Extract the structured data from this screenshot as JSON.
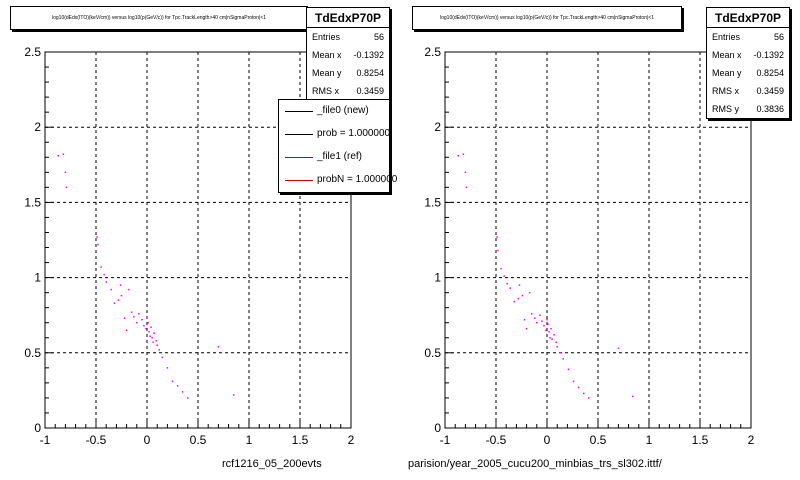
{
  "chart_data": [
    {
      "type": "scatter",
      "title": "log10(dEdx(ITO)(keV/cm)) versus log10(p(GeV/c)) for Tpc.TrackLength>40 cm|nSigmaProton|<1",
      "xlim": [
        -1,
        2
      ],
      "ylim": [
        0,
        2.5
      ],
      "x_ticks": [
        "-1",
        "-0.5",
        "0",
        "0.5",
        "1",
        "1.5",
        "2"
      ],
      "y_ticks": [
        "0",
        "0.5",
        "1",
        "1.5",
        "2",
        "2.5"
      ],
      "grid": true,
      "stats": {
        "name": "TdEdxP70P",
        "rows": [
          {
            "label": "Entries",
            "value": "56"
          },
          {
            "label": "Mean x",
            "value": "-0.1392"
          },
          {
            "label": "Mean y",
            "value": "0.8254"
          },
          {
            "label": "RMS x",
            "value": "0.3459"
          }
        ]
      },
      "legend": {
        "placement": "top-right",
        "entries": [
          {
            "label": "_file0 (new)",
            "color": "#000000"
          },
          {
            "label": "prob = 1.000000",
            "color": "#000000"
          },
          {
            "label": "_file1 (ref)",
            "color": "#cc0000"
          },
          {
            "label": "probN = 1.000000",
            "color": "#cc0000"
          }
        ]
      },
      "footer": "rcf1216_05_200evts",
      "marker_color": "#ff00ff",
      "points": [
        {
          "x": -0.87,
          "y": 1.81
        },
        {
          "x": -0.82,
          "y": 1.82
        },
        {
          "x": -0.8,
          "y": 1.7
        },
        {
          "x": -0.79,
          "y": 1.6
        },
        {
          "x": -0.49,
          "y": 1.27
        },
        {
          "x": -0.48,
          "y": 1.22
        },
        {
          "x": -0.45,
          "y": 1.07
        },
        {
          "x": -0.42,
          "y": 1.02
        },
        {
          "x": -0.4,
          "y": 0.97
        },
        {
          "x": -0.35,
          "y": 0.92
        },
        {
          "x": -0.32,
          "y": 0.83
        },
        {
          "x": -0.28,
          "y": 0.85
        },
        {
          "x": -0.26,
          "y": 0.95
        },
        {
          "x": -0.25,
          "y": 0.88
        },
        {
          "x": -0.22,
          "y": 0.73
        },
        {
          "x": -0.2,
          "y": 0.65
        },
        {
          "x": -0.18,
          "y": 0.92
        },
        {
          "x": -0.15,
          "y": 0.77
        },
        {
          "x": -0.13,
          "y": 0.74
        },
        {
          "x": -0.1,
          "y": 0.7
        },
        {
          "x": -0.08,
          "y": 0.76
        },
        {
          "x": -0.05,
          "y": 0.72
        },
        {
          "x": -0.03,
          "y": 0.68
        },
        {
          "x": -0.01,
          "y": 0.66
        },
        {
          "x": 0.0,
          "y": 0.73
        },
        {
          "x": 0.01,
          "y": 0.7
        },
        {
          "x": 0.02,
          "y": 0.64
        },
        {
          "x": 0.03,
          "y": 0.61
        },
        {
          "x": 0.04,
          "y": 0.67
        },
        {
          "x": 0.05,
          "y": 0.6
        },
        {
          "x": 0.06,
          "y": 0.57
        },
        {
          "x": 0.07,
          "y": 0.63
        },
        {
          "x": 0.09,
          "y": 0.58
        },
        {
          "x": 0.1,
          "y": 0.55
        },
        {
          "x": 0.12,
          "y": 0.52
        },
        {
          "x": 0.15,
          "y": 0.47
        },
        {
          "x": 0.2,
          "y": 0.4
        },
        {
          "x": 0.25,
          "y": 0.31
        },
        {
          "x": 0.3,
          "y": 0.28
        },
        {
          "x": 0.35,
          "y": 0.24
        },
        {
          "x": 0.4,
          "y": 0.2
        },
        {
          "x": 0.7,
          "y": 0.54
        },
        {
          "x": 0.85,
          "y": 0.22
        }
      ]
    },
    {
      "type": "scatter",
      "title": "log10(dEdx(ITO)(keV/cm)) versus log10(p(GeV/c)) for Tpc.TrackLength>40 cm|nSigmaProton|<1",
      "xlim": [
        -1,
        2
      ],
      "ylim": [
        0,
        2.5
      ],
      "x_ticks": [
        "-1",
        "-0.5",
        "0",
        "0.5",
        "1",
        "1.5",
        "2"
      ],
      "y_ticks": [
        "0",
        "0.5",
        "1",
        "1.5",
        "2",
        "2.5"
      ],
      "grid": true,
      "stats": {
        "name": "TdEdxP70P",
        "rows": [
          {
            "label": "Entries",
            "value": "56"
          },
          {
            "label": "Mean x",
            "value": "-0.1392"
          },
          {
            "label": "Mean y",
            "value": "0.8254"
          },
          {
            "label": "RMS x",
            "value": "0.3459"
          },
          {
            "label": "RMS y",
            "value": "0.3836"
          }
        ]
      },
      "footer": "parision/year_2005_cucu200_minbias_trs_sl302.ittf/",
      "marker_color": "#ff00ff",
      "points": [
        {
          "x": -0.87,
          "y": 1.81
        },
        {
          "x": -0.82,
          "y": 1.82
        },
        {
          "x": -0.8,
          "y": 1.7
        },
        {
          "x": -0.79,
          "y": 1.6
        },
        {
          "x": -0.49,
          "y": 1.27
        },
        {
          "x": -0.48,
          "y": 1.18
        },
        {
          "x": -0.45,
          "y": 1.06
        },
        {
          "x": -0.42,
          "y": 1.01
        },
        {
          "x": -0.39,
          "y": 0.96
        },
        {
          "x": -0.36,
          "y": 0.93
        },
        {
          "x": -0.32,
          "y": 0.84
        },
        {
          "x": -0.28,
          "y": 0.86
        },
        {
          "x": -0.27,
          "y": 0.95
        },
        {
          "x": -0.24,
          "y": 0.88
        },
        {
          "x": -0.22,
          "y": 0.72
        },
        {
          "x": -0.2,
          "y": 0.66
        },
        {
          "x": -0.17,
          "y": 0.9
        },
        {
          "x": -0.15,
          "y": 0.76
        },
        {
          "x": -0.12,
          "y": 0.73
        },
        {
          "x": -0.1,
          "y": 0.7
        },
        {
          "x": -0.07,
          "y": 0.75
        },
        {
          "x": -0.05,
          "y": 0.71
        },
        {
          "x": -0.03,
          "y": 0.68
        },
        {
          "x": -0.01,
          "y": 0.65
        },
        {
          "x": 0.0,
          "y": 0.72
        },
        {
          "x": 0.01,
          "y": 0.69
        },
        {
          "x": 0.02,
          "y": 0.64
        },
        {
          "x": 0.03,
          "y": 0.6
        },
        {
          "x": 0.04,
          "y": 0.66
        },
        {
          "x": 0.05,
          "y": 0.59
        },
        {
          "x": 0.07,
          "y": 0.62
        },
        {
          "x": 0.09,
          "y": 0.57
        },
        {
          "x": 0.1,
          "y": 0.54
        },
        {
          "x": 0.13,
          "y": 0.5
        },
        {
          "x": 0.16,
          "y": 0.46
        },
        {
          "x": 0.21,
          "y": 0.39
        },
        {
          "x": 0.26,
          "y": 0.31
        },
        {
          "x": 0.31,
          "y": 0.27
        },
        {
          "x": 0.36,
          "y": 0.23
        },
        {
          "x": 0.41,
          "y": 0.2
        },
        {
          "x": 0.7,
          "y": 0.53
        },
        {
          "x": 0.84,
          "y": 0.21
        }
      ]
    }
  ]
}
